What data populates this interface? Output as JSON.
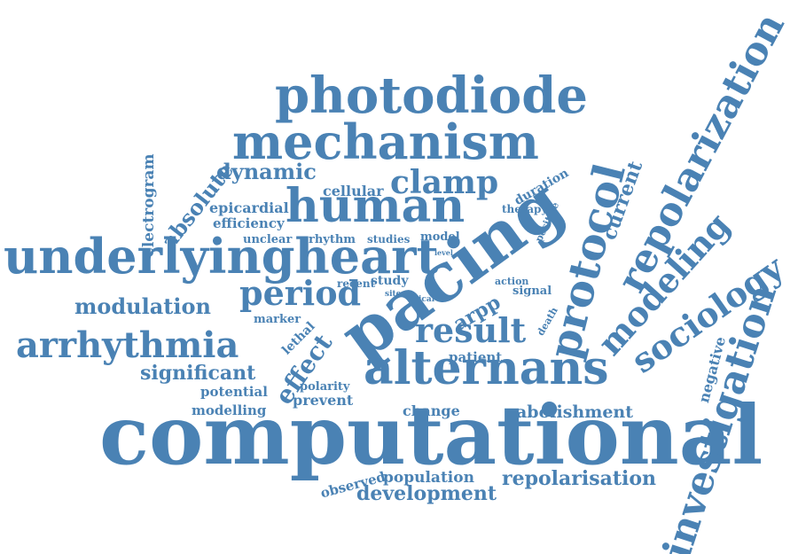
{
  "color": "#4a82b4",
  "words": [
    {
      "text": "computational",
      "size": 92,
      "angle": 0
    },
    {
      "text": "photodiode",
      "size": 56,
      "angle": 0
    },
    {
      "text": "mechanism",
      "size": 54,
      "angle": 0
    },
    {
      "text": "human",
      "size": 52,
      "angle": 0
    },
    {
      "text": "underlyingheart",
      "size": 54,
      "angle": 0
    },
    {
      "text": "alternans",
      "size": 52,
      "angle": 0
    },
    {
      "text": "pacing",
      "size": 76,
      "angle": -36
    },
    {
      "text": "repolarization",
      "size": 44,
      "angle": -62
    },
    {
      "text": "protocol",
      "size": 48,
      "angle": -76
    },
    {
      "text": "modeling",
      "size": 38,
      "angle": -48
    },
    {
      "text": "sociology",
      "size": 38,
      "angle": -35
    },
    {
      "text": "investigation",
      "size": 44,
      "angle": -72
    },
    {
      "text": "arrhythmia",
      "size": 40,
      "angle": 0
    },
    {
      "text": "period",
      "size": 38,
      "angle": 0
    },
    {
      "text": "result",
      "size": 38,
      "angle": 0
    },
    {
      "text": "clamp",
      "size": 36,
      "angle": 0
    },
    {
      "text": "modulation",
      "size": 24,
      "angle": 0
    },
    {
      "text": "dynamic",
      "size": 24,
      "angle": 0
    },
    {
      "text": "effect",
      "size": 28,
      "angle": -55
    },
    {
      "text": "absolute",
      "size": 24,
      "angle": -52
    },
    {
      "text": "current",
      "size": 22,
      "angle": -70
    },
    {
      "text": "significant",
      "size": 22,
      "angle": 0
    },
    {
      "text": "repolarisation",
      "size": 22,
      "angle": 0
    },
    {
      "text": "development",
      "size": 22,
      "angle": 0
    },
    {
      "text": "abolishment",
      "size": 19,
      "angle": 0
    },
    {
      "text": "arpp",
      "size": 22,
      "angle": -30
    },
    {
      "text": "electrogram",
      "size": 17,
      "angle": -90
    },
    {
      "text": "epicardial",
      "size": 16,
      "angle": 0
    },
    {
      "text": "efficiency",
      "size": 15,
      "angle": 0
    },
    {
      "text": "cellular",
      "size": 16,
      "angle": 0
    },
    {
      "text": "unclear",
      "size": 13,
      "angle": 0
    },
    {
      "text": "rhythm",
      "size": 13,
      "angle": 0
    },
    {
      "text": "studies",
      "size": 12,
      "angle": 0
    },
    {
      "text": "model",
      "size": 13,
      "angle": 0
    },
    {
      "text": "level",
      "size": 8,
      "angle": 0
    },
    {
      "text": "duration",
      "size": 14,
      "angle": -30
    },
    {
      "text": "therapy",
      "size": 12,
      "angle": 0
    },
    {
      "text": "positive",
      "size": 11,
      "angle": -65
    },
    {
      "text": "recent",
      "size": 12,
      "angle": 0
    },
    {
      "text": "study",
      "size": 14,
      "angle": 0
    },
    {
      "text": "action",
      "size": 11,
      "angle": 0
    },
    {
      "text": "signal",
      "size": 13,
      "angle": 0
    },
    {
      "text": "site",
      "size": 9,
      "angle": 0
    },
    {
      "text": "ical",
      "size": 9,
      "angle": 0
    },
    {
      "text": "death",
      "size": 11,
      "angle": -60
    },
    {
      "text": "marker",
      "size": 13,
      "angle": 0
    },
    {
      "text": "lethal",
      "size": 14,
      "angle": -45
    },
    {
      "text": "patient",
      "size": 15,
      "angle": 0
    },
    {
      "text": "negative",
      "size": 16,
      "angle": -75
    },
    {
      "text": "polarity",
      "size": 13,
      "angle": 0
    },
    {
      "text": "potential",
      "size": 15,
      "angle": 0
    },
    {
      "text": "prevent",
      "size": 16,
      "angle": 0
    },
    {
      "text": "modelling",
      "size": 15,
      "angle": 0
    },
    {
      "text": "change",
      "size": 16,
      "angle": 0
    },
    {
      "text": "observed",
      "size": 15,
      "angle": -15
    },
    {
      "text": "population",
      "size": 17,
      "angle": 0
    }
  ]
}
